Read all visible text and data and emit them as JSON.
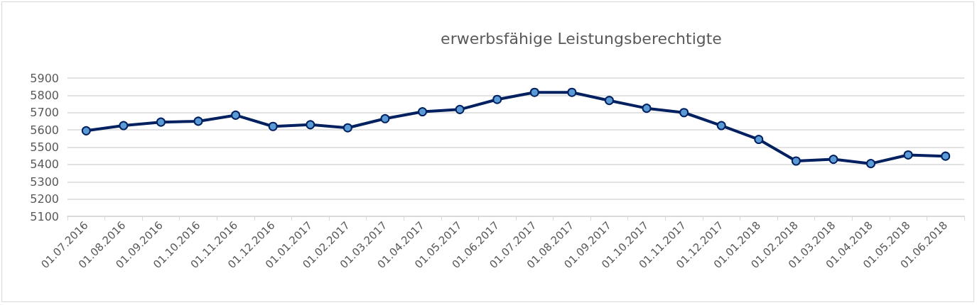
{
  "chart_data": {
    "type": "line",
    "title": "erwerbsfähige Leistungsberechtigte",
    "categories": [
      "01.07.2016",
      "01.08.2016",
      "01.09.2016",
      "01.10.2016",
      "01.11.2016",
      "01.12.2016",
      "01.01.2017",
      "01.02.2017",
      "01.03.2017",
      "01.04.2017",
      "01.05.2017",
      "01.06.2017",
      "01.07.2017",
      "01.08.2017",
      "01.09.2017",
      "01.10.2017",
      "01.11.2017",
      "01.12.2017",
      "01.01.2018",
      "01.02.2018",
      "01.03.2018",
      "01.04.2018",
      "01.05.2018",
      "01.06.2018"
    ],
    "series": [
      {
        "color": "#002060",
        "values": [
          5595,
          5625,
          5645,
          5650,
          5685,
          5620,
          5630,
          5612,
          5665,
          5705,
          5718,
          5776,
          5817,
          5817,
          5770,
          5725,
          5700,
          5625,
          5545,
          5420,
          5430,
          5405,
          5455,
          5448
        ]
      }
    ],
    "ylim": [
      5100,
      5900
    ],
    "yticks": [
      5100,
      5200,
      5300,
      5400,
      5500,
      5600,
      5700,
      5800,
      5900
    ],
    "grid": "y",
    "marker": "circle",
    "line_style": "solid"
  }
}
